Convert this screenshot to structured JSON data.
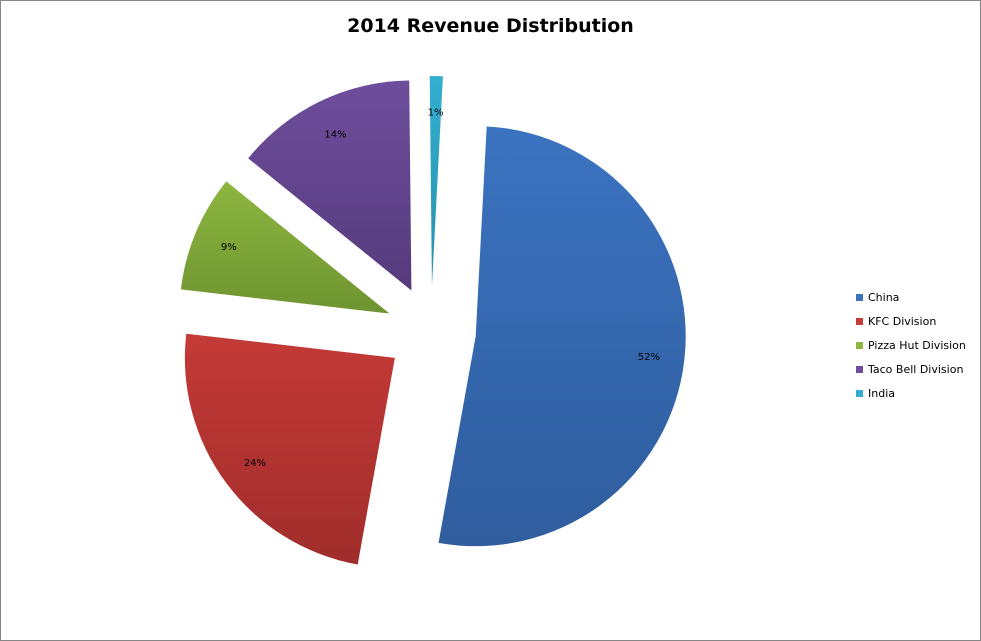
{
  "chart_data": {
    "type": "pie",
    "title": "2014 Revenue Distribution",
    "categories": [
      "China",
      "KFC Division",
      "Pizza Hut Division",
      "Taco Bell Division",
      "India"
    ],
    "values": [
      52,
      24,
      9,
      14,
      1
    ],
    "data_labels": [
      "52%",
      "24%",
      "9%",
      "14%",
      "1%"
    ],
    "colors": [
      "#3b73c0",
      "#c43a37",
      "#8db640",
      "#6e4e9c",
      "#34aed0"
    ],
    "colors_dark": [
      "#2f5d9e",
      "#a02d2b",
      "#6e9430",
      "#553b7d",
      "#2690ad"
    ],
    "exploded": true,
    "legend_position": "right"
  }
}
